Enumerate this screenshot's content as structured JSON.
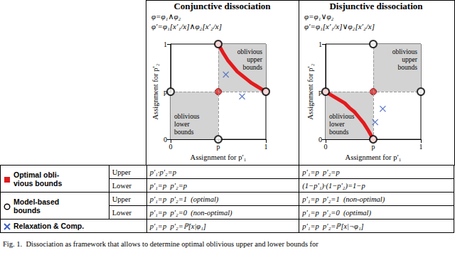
{
  "chart_data": [
    {
      "type": "scatter",
      "title": "Conjunctive dissociation",
      "formulas": [
        "φ=φ₁∧φ₂",
        "φ′=φ₁[x′₁/x]∧φ₂[x′₂/x]"
      ],
      "xlabel": "Assignment for p′₁",
      "ylabel": "Assignment for p′₂",
      "xlim": [
        0,
        1
      ],
      "ylim": [
        0,
        1
      ],
      "xticks": [
        0,
        {
          "value": 0.5,
          "label": "p"
        },
        1
      ],
      "yticks": [
        0,
        {
          "value": 0.5,
          "label": "p"
        },
        1
      ],
      "grid": false,
      "dashed_lines": {
        "x": [
          0.5
        ],
        "y": [
          0.5
        ]
      },
      "regions": [
        {
          "label": "oblivious upper bounds",
          "x": [
            0.5,
            1
          ],
          "y": [
            0.5,
            1
          ],
          "color": "#d3d3d3"
        },
        {
          "label": "oblivious lower bounds",
          "x": [
            0,
            0.5
          ],
          "y": [
            0,
            0.5
          ],
          "color": "#d3d3d3"
        }
      ],
      "series": [
        {
          "type": "line",
          "color": "#e31a1c",
          "line_style": "solid",
          "x": [
            0.5,
            0.55,
            0.6,
            0.65,
            0.7,
            0.75,
            0.8,
            0.85,
            0.9,
            0.95,
            1
          ],
          "values": [
            1,
            0.91,
            0.83,
            0.77,
            0.71,
            0.67,
            0.63,
            0.59,
            0.56,
            0.53,
            0.5
          ]
        },
        {
          "type": "scatter",
          "marker": "circle",
          "color": "#e31a1c",
          "x": [
            0.5,
            1,
            0.5
          ],
          "values": [
            1,
            0.5,
            0.5
          ]
        },
        {
          "type": "scatter",
          "marker": "open_circle",
          "color": "#000000",
          "x": [
            0.5,
            1,
            0.5,
            0
          ],
          "values": [
            1,
            0.5,
            0,
            0.5
          ]
        },
        {
          "type": "scatter",
          "marker": "x",
          "color": "#3f5fbf",
          "x": [
            0.58,
            0.75
          ],
          "values": [
            0.68,
            0.45
          ]
        }
      ]
    },
    {
      "type": "scatter",
      "title": "Disjunctive dissociation",
      "formulas": [
        "φ=φ₁∨φ₂",
        "φ′=φ₁[x′₁/x]∨φ₂[x′₂/x]"
      ],
      "xlabel": "Assignment for p′₁",
      "ylabel": "Assignment for p′₂",
      "xlim": [
        0,
        1
      ],
      "ylim": [
        0,
        1
      ],
      "xticks": [
        0,
        {
          "value": 0.5,
          "label": "p"
        },
        1
      ],
      "yticks": [
        0,
        {
          "value": 0.5,
          "label": "p"
        },
        1
      ],
      "grid": false,
      "dashed_lines": {
        "x": [
          0.5
        ],
        "y": [
          0.5
        ]
      },
      "regions": [
        {
          "label": "oblivious upper bounds",
          "x": [
            0.5,
            1
          ],
          "y": [
            0.5,
            1
          ],
          "color": "#d3d3d3"
        },
        {
          "label": "oblivious lower bounds",
          "x": [
            0,
            0.5
          ],
          "y": [
            0,
            0.5
          ],
          "color": "#d3d3d3"
        }
      ],
      "series": [
        {
          "type": "line",
          "color": "#e31a1c",
          "line_style": "solid",
          "x": [
            0,
            0.05,
            0.1,
            0.15,
            0.2,
            0.25,
            0.3,
            0.35,
            0.4,
            0.45,
            0.5
          ],
          "values": [
            0.5,
            0.47,
            0.44,
            0.41,
            0.38,
            0.33,
            0.29,
            0.23,
            0.17,
            0.09,
            0
          ]
        },
        {
          "type": "scatter",
          "marker": "circle",
          "color": "#e31a1c",
          "x": [
            0,
            0.5,
            0.5
          ],
          "values": [
            0.5,
            0,
            0.5
          ]
        },
        {
          "type": "scatter",
          "marker": "open_circle",
          "color": "#000000",
          "x": [
            0.5,
            1,
            0.5,
            0
          ],
          "values": [
            1,
            0.5,
            0,
            0.5
          ]
        },
        {
          "type": "scatter",
          "marker": "x",
          "color": "#3f5fbf",
          "x": [
            0.6,
            0.52
          ],
          "values": [
            0.32,
            0.18
          ]
        }
      ]
    }
  ],
  "table": {
    "rows": [
      {
        "label": [
          "Optimal obli-",
          "vious bounds"
        ],
        "marker": "square",
        "color": "#e31a1c",
        "cells": [
          [
            "Upper",
            "p′₁·p′₂=p",
            "p′₁=p  p′₂=p"
          ],
          [
            "Lower",
            "p′₁=p  p′₂=p",
            "(1−p′₁)·(1−p′₂)=1−p"
          ]
        ]
      },
      {
        "label": [
          "Model-based",
          "bounds"
        ],
        "marker": "open_circle",
        "color": "#000000",
        "cells": [
          [
            "Upper",
            "p′₁=p  p′₂=1  (optimal)",
            "p′₁=p  p′₂=1  (non-optimal)"
          ],
          [
            "Lower",
            "p′₁=p  p′₂=0  (non-optimal)",
            "p′₁=p  p′₂=0  (optimal)"
          ]
        ]
      },
      {
        "label": [
          "Relaxation & Comp."
        ],
        "marker": "x",
        "color": "#3f5fbf",
        "cells": [
          [
            "p′₁=p  p′₂=ℙ[x|φ₁]",
            "p′₁=p  p′₂=ℙ[x|¬φ₁]"
          ]
        ]
      }
    ]
  },
  "caption": "Fig. 1.  Dissociation as framework that allows to determine optimal oblivious upper and lower bounds for"
}
